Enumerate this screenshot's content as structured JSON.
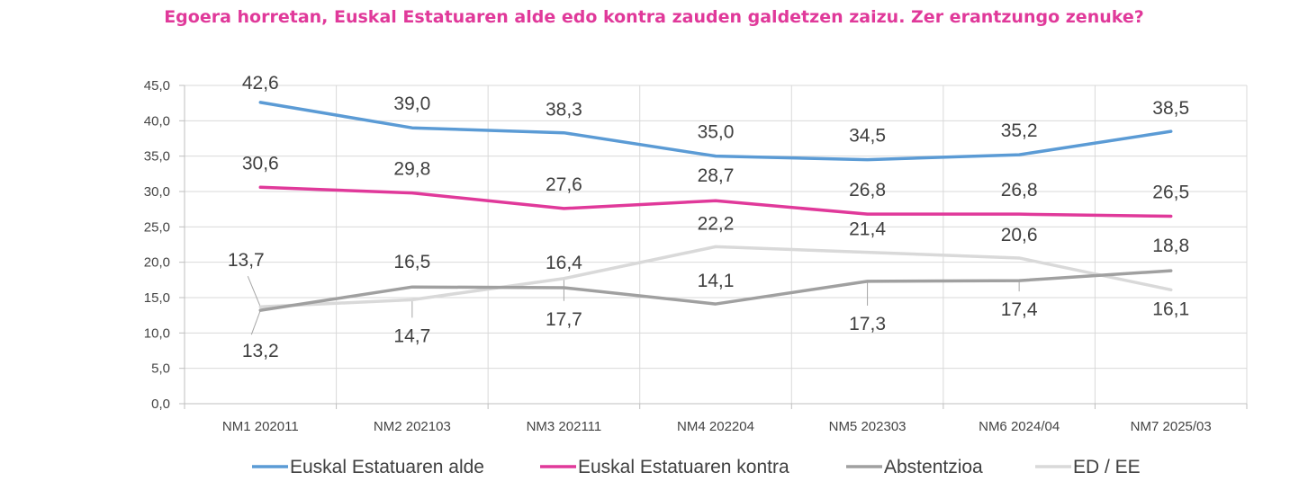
{
  "chart_data": {
    "type": "line",
    "title": "Egoera horretan, Euskal Estatuaren alde edo kontra zauden galdetzen zaizu. Zer erantzungo zenuke?",
    "categories": [
      "NM1 202011",
      "NM2 202103",
      "NM3 202111",
      "NM4 202204",
      "NM5 202303",
      "NM6 2024/04",
      "NM7 2025/03"
    ],
    "ylim": [
      0,
      45
    ],
    "yticks": [
      "0,0",
      "5,0",
      "10,0",
      "15,0",
      "20,0",
      "25,0",
      "30,0",
      "35,0",
      "40,0",
      "45,0"
    ],
    "grid": true,
    "legend_position": "bottom",
    "series": [
      {
        "name": "Euskal Estatuaren alde",
        "color": "#5b9bd5",
        "values": [
          42.6,
          39.0,
          38.3,
          35.0,
          34.5,
          35.2,
          38.5
        ],
        "labels": [
          "42,6",
          "39,0",
          "38,3",
          "35,0",
          "34,5",
          "35,2",
          "38,5"
        ]
      },
      {
        "name": "Euskal Estatuaren kontra",
        "color": "#e0399a",
        "values": [
          30.6,
          29.8,
          27.6,
          28.7,
          26.8,
          26.8,
          26.5
        ],
        "labels": [
          "30,6",
          "29,8",
          "27,6",
          "28,7",
          "26,8",
          "26,8",
          "26,5"
        ]
      },
      {
        "name": "Abstentzioa",
        "color": "#a0a0a0",
        "values": [
          13.2,
          16.5,
          16.4,
          14.1,
          17.3,
          17.4,
          18.8
        ],
        "labels": [
          "13,2",
          "16,5",
          "16,4",
          "14,1",
          "17,3",
          "17,4",
          "18,8"
        ]
      },
      {
        "name": "ED / EE",
        "color": "#d9d9d9",
        "values": [
          13.7,
          14.7,
          17.7,
          22.2,
          21.4,
          20.6,
          16.1
        ],
        "labels": [
          "13,7",
          "14,7",
          "17,7",
          "22,2",
          "21,4",
          "20,6",
          "16,1"
        ]
      }
    ]
  }
}
